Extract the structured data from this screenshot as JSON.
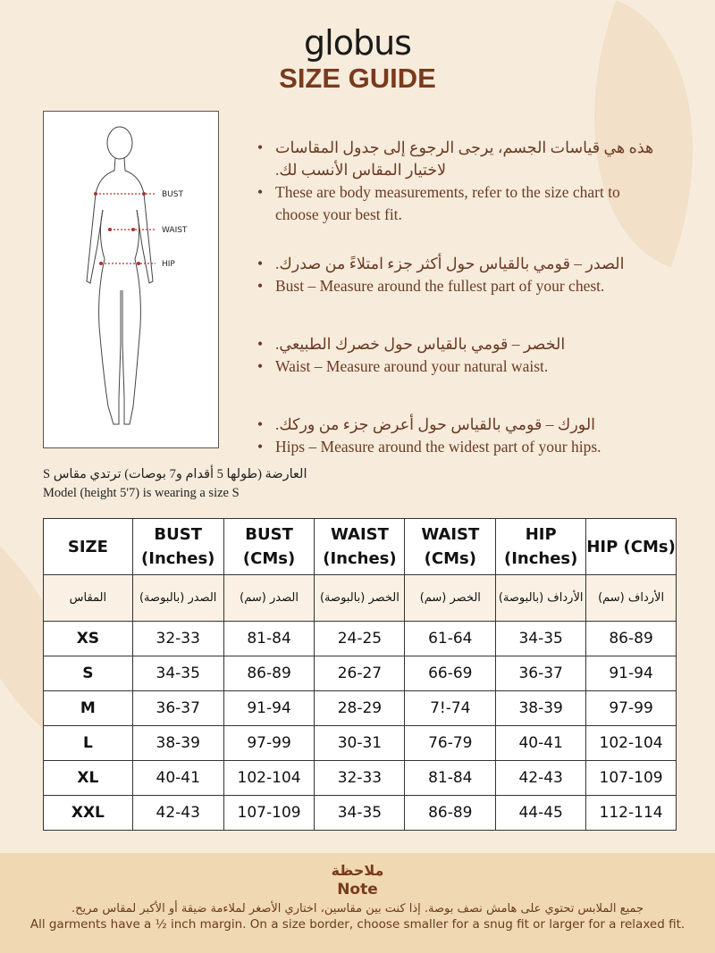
{
  "brand": "globus",
  "title": "SIZE GUIDE",
  "figure_labels": {
    "bust": "BUST",
    "waist": "WAIST",
    "hip": "HIP"
  },
  "instructions": [
    {
      "ar": "هذه هي قياسات الجسم، يرجى الرجوع إلى جدول المقاسات لاختيار المقاس الأنسب لك.",
      "en": "These are body measurements, refer to the size chart to choose your best fit."
    },
    {
      "ar": "الصدر – قومي بالقياس حول أكثر جزء امتلاءً من صدرك.",
      "en": "Bust – Measure around the fullest part of your chest."
    },
    {
      "ar": "الخصر – قومي بالقياس حول خصرك الطبيعي.",
      "en": "Waist – Measure around your natural waist."
    },
    {
      "ar": "الورك – قومي بالقياس حول أعرض جزء من وركك.",
      "en": "Hips – Measure around the widest part of your hips."
    }
  ],
  "model": {
    "ar": "العارضة (طولها 5 أقدام و7 بوصات) ترتدي مقاس S",
    "en": "Model (height 5'7) is wearing a size S"
  },
  "table": {
    "headers": [
      "SIZE",
      "BUST (Inches)",
      "BUST (CMs)",
      "WAIST (Inches)",
      "WAIST (CMs)",
      "HIP (Inches)",
      "HIP (CMs)"
    ],
    "headers_ar": [
      "المقاس",
      "الصدر (بالبوصة)",
      "الصدر (سم)",
      "الخصر (بالبوصة)",
      "الخصر (سم)",
      "الأرداف (بالبوصة)",
      "الأرداف (سم)"
    ],
    "rows": [
      [
        "XS",
        "32-33",
        "81-84",
        "24-25",
        "61-64",
        "34-35",
        "86-89"
      ],
      [
        "S",
        "34-35",
        "86-89",
        "26-27",
        "66-69",
        "36-37",
        "91-94"
      ],
      [
        "M",
        "36-37",
        "91-94",
        "28-29",
        "7!-74",
        "38-39",
        "97-99"
      ],
      [
        "L",
        "38-39",
        "97-99",
        "30-31",
        "76-79",
        "40-41",
        "102-104"
      ],
      [
        "XL",
        "40-41",
        "102-104",
        "32-33",
        "81-84",
        "42-43",
        "107-109"
      ],
      [
        "XXL",
        "42-43",
        "107-109",
        "34-35",
        "86-89",
        "44-45",
        "112-114"
      ]
    ]
  },
  "note": {
    "title_ar": "ملاحظة",
    "title": "Note",
    "text_ar": "جميع الملابس تحتوي على هامش نصف بوصة. إذا كنت بين مقاسين، اختاري الأصغر لملاءمة ضيقة أو الأكبر لمقاس مريح.",
    "text": "All garments have a ½ inch margin. On a size border, choose smaller for a snug fit or larger for a relaxed fit."
  },
  "colors": {
    "background": "#f7ecdc",
    "accent": "#7a3a1e",
    "note_band": "#f0d9b2"
  }
}
